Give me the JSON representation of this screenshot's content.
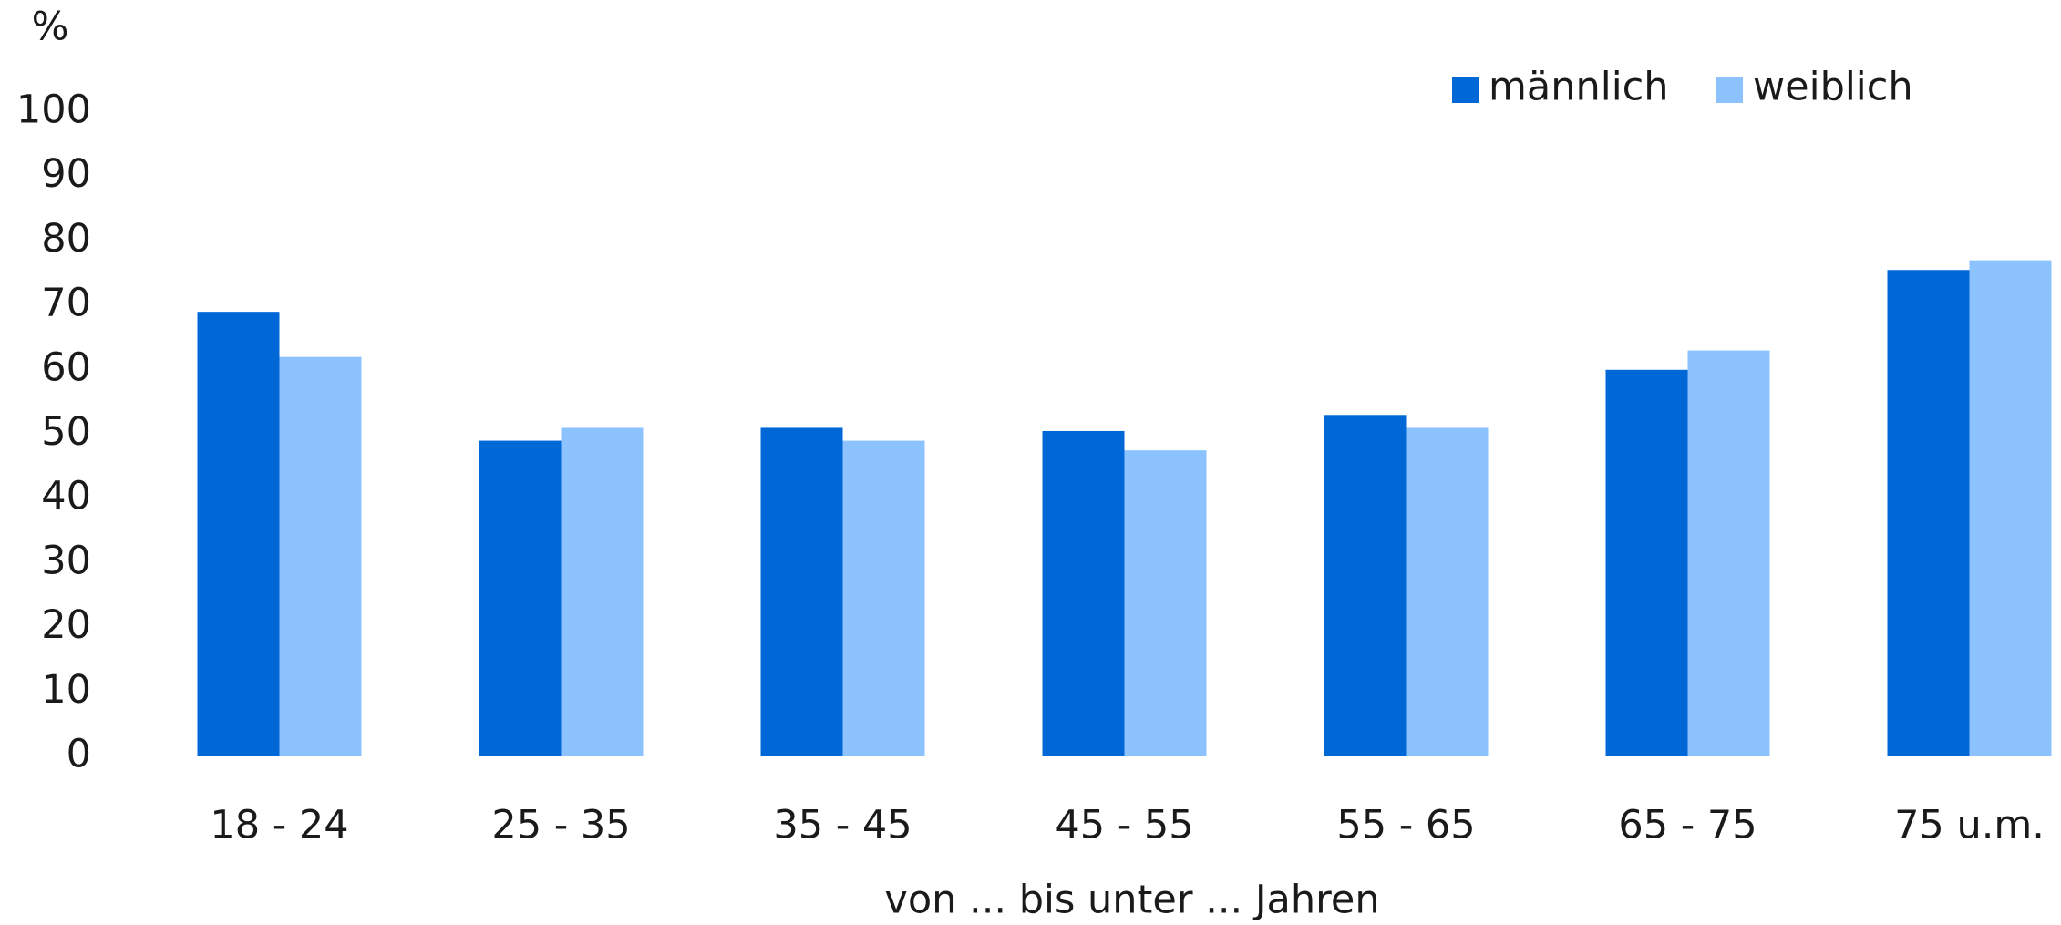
{
  "chart_data": {
    "type": "bar",
    "y_unit": "%",
    "x_label": "von ... bis unter ... Jahren",
    "categories": [
      "18 - 24",
      "25 - 35",
      "35 - 45",
      "45 - 55",
      "55 - 65",
      "65 - 75",
      "75 u.m."
    ],
    "series": [
      {
        "name": "männlich",
        "color": "#0068d6",
        "values": [
          69,
          49,
          51,
          50.5,
          53,
          60,
          75.5
        ]
      },
      {
        "name": "weiblich",
        "color": "#8cc3ff",
        "values": [
          62,
          51,
          49,
          47.5,
          51,
          63,
          77
        ]
      }
    ],
    "ylim": [
      0,
      100
    ],
    "yticks": [
      0,
      10,
      20,
      30,
      40,
      50,
      60,
      70,
      80,
      90,
      100
    ],
    "grid": false,
    "legend": "top-right"
  }
}
